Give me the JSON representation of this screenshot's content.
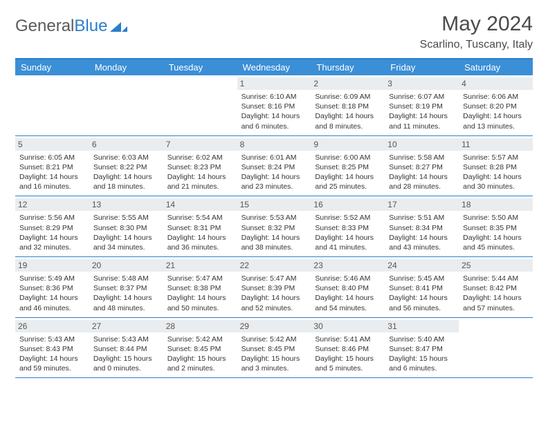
{
  "brand": {
    "part1": "General",
    "part2": "Blue"
  },
  "title": {
    "month": "May 2024",
    "location": "Scarlino, Tuscany, Italy"
  },
  "colors": {
    "header_bg": "#3b8fd6",
    "border": "#2a7fc9",
    "daynum_bg": "#e9edef",
    "text": "#333333",
    "brand_gray": "#5a5a5a",
    "brand_blue": "#2a7fc9",
    "white": "#ffffff"
  },
  "day_names": [
    "Sunday",
    "Monday",
    "Tuesday",
    "Wednesday",
    "Thursday",
    "Friday",
    "Saturday"
  ],
  "calendar": {
    "blank_leading": 3,
    "days": [
      {
        "n": "1",
        "sunrise": "6:10 AM",
        "sunset": "8:16 PM",
        "dl_h": "14",
        "dl_m": "6"
      },
      {
        "n": "2",
        "sunrise": "6:09 AM",
        "sunset": "8:18 PM",
        "dl_h": "14",
        "dl_m": "8"
      },
      {
        "n": "3",
        "sunrise": "6:07 AM",
        "sunset": "8:19 PM",
        "dl_h": "14",
        "dl_m": "11"
      },
      {
        "n": "4",
        "sunrise": "6:06 AM",
        "sunset": "8:20 PM",
        "dl_h": "14",
        "dl_m": "13"
      },
      {
        "n": "5",
        "sunrise": "6:05 AM",
        "sunset": "8:21 PM",
        "dl_h": "14",
        "dl_m": "16"
      },
      {
        "n": "6",
        "sunrise": "6:03 AM",
        "sunset": "8:22 PM",
        "dl_h": "14",
        "dl_m": "18"
      },
      {
        "n": "7",
        "sunrise": "6:02 AM",
        "sunset": "8:23 PM",
        "dl_h": "14",
        "dl_m": "21"
      },
      {
        "n": "8",
        "sunrise": "6:01 AM",
        "sunset": "8:24 PM",
        "dl_h": "14",
        "dl_m": "23"
      },
      {
        "n": "9",
        "sunrise": "6:00 AM",
        "sunset": "8:25 PM",
        "dl_h": "14",
        "dl_m": "25"
      },
      {
        "n": "10",
        "sunrise": "5:58 AM",
        "sunset": "8:27 PM",
        "dl_h": "14",
        "dl_m": "28"
      },
      {
        "n": "11",
        "sunrise": "5:57 AM",
        "sunset": "8:28 PM",
        "dl_h": "14",
        "dl_m": "30"
      },
      {
        "n": "12",
        "sunrise": "5:56 AM",
        "sunset": "8:29 PM",
        "dl_h": "14",
        "dl_m": "32"
      },
      {
        "n": "13",
        "sunrise": "5:55 AM",
        "sunset": "8:30 PM",
        "dl_h": "14",
        "dl_m": "34"
      },
      {
        "n": "14",
        "sunrise": "5:54 AM",
        "sunset": "8:31 PM",
        "dl_h": "14",
        "dl_m": "36"
      },
      {
        "n": "15",
        "sunrise": "5:53 AM",
        "sunset": "8:32 PM",
        "dl_h": "14",
        "dl_m": "38"
      },
      {
        "n": "16",
        "sunrise": "5:52 AM",
        "sunset": "8:33 PM",
        "dl_h": "14",
        "dl_m": "41"
      },
      {
        "n": "17",
        "sunrise": "5:51 AM",
        "sunset": "8:34 PM",
        "dl_h": "14",
        "dl_m": "43"
      },
      {
        "n": "18",
        "sunrise": "5:50 AM",
        "sunset": "8:35 PM",
        "dl_h": "14",
        "dl_m": "45"
      },
      {
        "n": "19",
        "sunrise": "5:49 AM",
        "sunset": "8:36 PM",
        "dl_h": "14",
        "dl_m": "46"
      },
      {
        "n": "20",
        "sunrise": "5:48 AM",
        "sunset": "8:37 PM",
        "dl_h": "14",
        "dl_m": "48"
      },
      {
        "n": "21",
        "sunrise": "5:47 AM",
        "sunset": "8:38 PM",
        "dl_h": "14",
        "dl_m": "50"
      },
      {
        "n": "22",
        "sunrise": "5:47 AM",
        "sunset": "8:39 PM",
        "dl_h": "14",
        "dl_m": "52"
      },
      {
        "n": "23",
        "sunrise": "5:46 AM",
        "sunset": "8:40 PM",
        "dl_h": "14",
        "dl_m": "54"
      },
      {
        "n": "24",
        "sunrise": "5:45 AM",
        "sunset": "8:41 PM",
        "dl_h": "14",
        "dl_m": "56"
      },
      {
        "n": "25",
        "sunrise": "5:44 AM",
        "sunset": "8:42 PM",
        "dl_h": "14",
        "dl_m": "57"
      },
      {
        "n": "26",
        "sunrise": "5:43 AM",
        "sunset": "8:43 PM",
        "dl_h": "14",
        "dl_m": "59"
      },
      {
        "n": "27",
        "sunrise": "5:43 AM",
        "sunset": "8:44 PM",
        "dl_h": "15",
        "dl_m": "0"
      },
      {
        "n": "28",
        "sunrise": "5:42 AM",
        "sunset": "8:45 PM",
        "dl_h": "15",
        "dl_m": "2"
      },
      {
        "n": "29",
        "sunrise": "5:42 AM",
        "sunset": "8:45 PM",
        "dl_h": "15",
        "dl_m": "3"
      },
      {
        "n": "30",
        "sunrise": "5:41 AM",
        "sunset": "8:46 PM",
        "dl_h": "15",
        "dl_m": "5"
      },
      {
        "n": "31",
        "sunrise": "5:40 AM",
        "sunset": "8:47 PM",
        "dl_h": "15",
        "dl_m": "6"
      }
    ]
  },
  "labels": {
    "sunrise": "Sunrise:",
    "sunset": "Sunset:",
    "daylight_prefix": "Daylight:",
    "hours_word": "hours",
    "and_word": "and",
    "minutes_word": "minutes."
  }
}
